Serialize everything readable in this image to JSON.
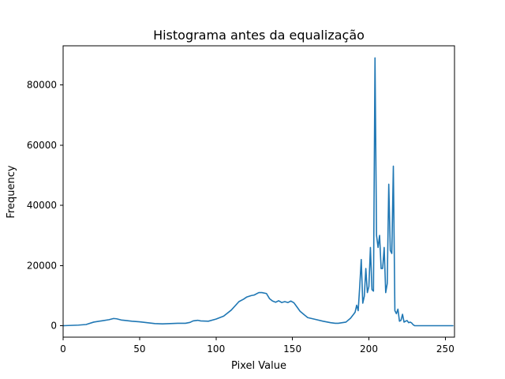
{
  "chart_data": {
    "type": "line",
    "title": "Histograma antes da equalização",
    "xlabel": "Pixel Value",
    "ylabel": "Frequency",
    "xlim": [
      0,
      256
    ],
    "ylim": [
      -3800,
      93000
    ],
    "xticks": [
      0,
      50,
      100,
      150,
      200,
      250
    ],
    "yticks": [
      0,
      20000,
      40000,
      60000,
      80000
    ],
    "grid": false,
    "color": "#1f77b4",
    "series": [
      {
        "x": [
          0,
          5,
          10,
          15,
          20,
          25,
          30,
          33,
          35,
          38,
          40,
          45,
          50,
          55,
          60,
          65,
          70,
          75,
          80,
          83,
          85,
          88,
          90,
          95,
          100,
          105,
          110,
          115,
          118,
          120,
          123,
          125,
          128,
          130,
          133,
          135,
          137,
          139,
          141,
          143,
          145,
          147,
          149,
          151,
          153,
          155,
          158,
          160,
          165,
          170,
          175,
          178,
          180,
          185,
          188,
          190,
          191,
          192,
          193,
          194,
          195,
          196,
          197,
          198,
          199,
          200,
          201,
          202,
          203,
          204,
          205,
          206,
          207,
          208,
          209,
          210,
          211,
          212,
          213,
          214,
          215,
          216,
          217,
          218,
          219,
          220,
          221,
          222,
          223,
          224,
          225,
          226,
          227,
          228,
          229,
          230,
          235,
          240,
          245,
          250,
          255
        ],
        "y": [
          0,
          100,
          200,
          400,
          1200,
          1600,
          2000,
          2400,
          2300,
          1900,
          1800,
          1500,
          1300,
          1000,
          700,
          600,
          700,
          800,
          800,
          1100,
          1600,
          1800,
          1600,
          1500,
          2200,
          3200,
          5200,
          8000,
          8800,
          9500,
          10000,
          10200,
          11000,
          11000,
          10700,
          9000,
          8200,
          7800,
          8300,
          7700,
          8000,
          7700,
          8200,
          7600,
          6200,
          4800,
          3500,
          2700,
          2100,
          1500,
          1000,
          800,
          800,
          1200,
          2500,
          3800,
          4500,
          6800,
          5000,
          13000,
          22000,
          7500,
          9800,
          19000,
          11000,
          13000,
          26000,
          12000,
          11500,
          89000,
          30000,
          26000,
          30000,
          19000,
          19000,
          26000,
          11000,
          14000,
          47000,
          25000,
          24000,
          53000,
          5000,
          4000,
          5500,
          1500,
          1800,
          3800,
          1200,
          1500,
          1700,
          1000,
          1200,
          900,
          300,
          0,
          0,
          0,
          0,
          0,
          0
        ]
      }
    ]
  }
}
